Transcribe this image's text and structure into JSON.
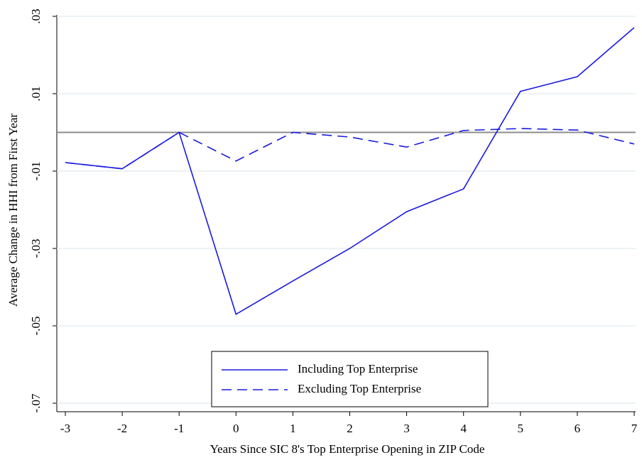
{
  "chart_data": {
    "type": "line",
    "xlabel": "Years Since SIC 8's Top Enterprise Opening in ZIP Code",
    "ylabel": "Average Change in HHI from First Year",
    "x": [
      -3,
      -2,
      -1,
      0,
      1,
      2,
      3,
      4,
      5,
      6,
      7
    ],
    "series": [
      {
        "name": "Including Top Enterprise",
        "color": "#1a1adf",
        "linestyle": "solid",
        "values": [
          -0.0078,
          -0.0094,
          0,
          -0.047,
          -0.0384,
          -0.03,
          -0.0205,
          -0.0146,
          0.0106,
          0.0144,
          0.0271
        ]
      },
      {
        "name": "Excluding Top Enterprise",
        "color": "#1a1adf",
        "linestyle": "dashed",
        "values": [
          -0.0078,
          -0.0094,
          0,
          -0.0074,
          0,
          -0.0012,
          -0.0038,
          0.0005,
          0.001,
          0.0006,
          -0.003
        ]
      }
    ],
    "xlim": [
      -3,
      7
    ],
    "xticks": [
      -3,
      -2,
      -1,
      0,
      1,
      2,
      3,
      4,
      5,
      6,
      7
    ],
    "ylim": [
      -0.07,
      0.03
    ],
    "yticks": [
      {
        "value": -0.07,
        "label": "-.07"
      },
      {
        "value": -0.05,
        "label": "-.05"
      },
      {
        "value": -0.03,
        "label": "-.03"
      },
      {
        "value": -0.01,
        "label": "-.01"
      },
      {
        "value": 0.01,
        "label": ".01"
      },
      {
        "value": 0.03,
        "label": ".03"
      }
    ],
    "grid": true,
    "hline": 0,
    "hline_color": "#8c8c8c"
  }
}
